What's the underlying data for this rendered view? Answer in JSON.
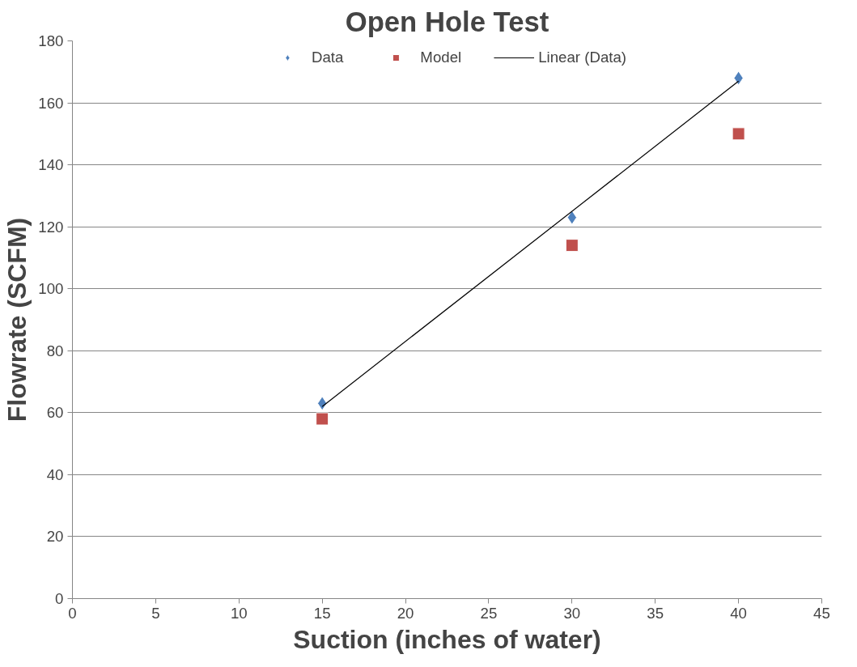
{
  "chart_data": {
    "type": "scatter",
    "title": "Open Hole Test",
    "xlabel": "Suction (inches of water)",
    "ylabel": "Flowrate (SCFM)",
    "x": [
      15,
      30,
      40
    ],
    "series": [
      {
        "name": "Data",
        "color": "#4f81bd",
        "marker": "diamond",
        "values": [
          63,
          123,
          168
        ]
      },
      {
        "name": "Model",
        "color": "#c0504d",
        "marker": "square",
        "values": [
          58,
          114,
          150
        ]
      },
      {
        "name": "Linear (Data)",
        "type": "line",
        "color": "#000000",
        "marker": "none",
        "x": [
          15,
          40
        ],
        "values": [
          62,
          167
        ]
      }
    ],
    "xlim": [
      0,
      45
    ],
    "xticks": [
      0,
      5,
      10,
      15,
      20,
      25,
      30,
      35,
      40,
      45
    ],
    "ylim": [
      0,
      180
    ],
    "yticks": [
      0,
      20,
      40,
      60,
      80,
      100,
      120,
      140,
      160,
      180
    ],
    "grid": "y",
    "legend": "top",
    "line_style": "solid"
  }
}
